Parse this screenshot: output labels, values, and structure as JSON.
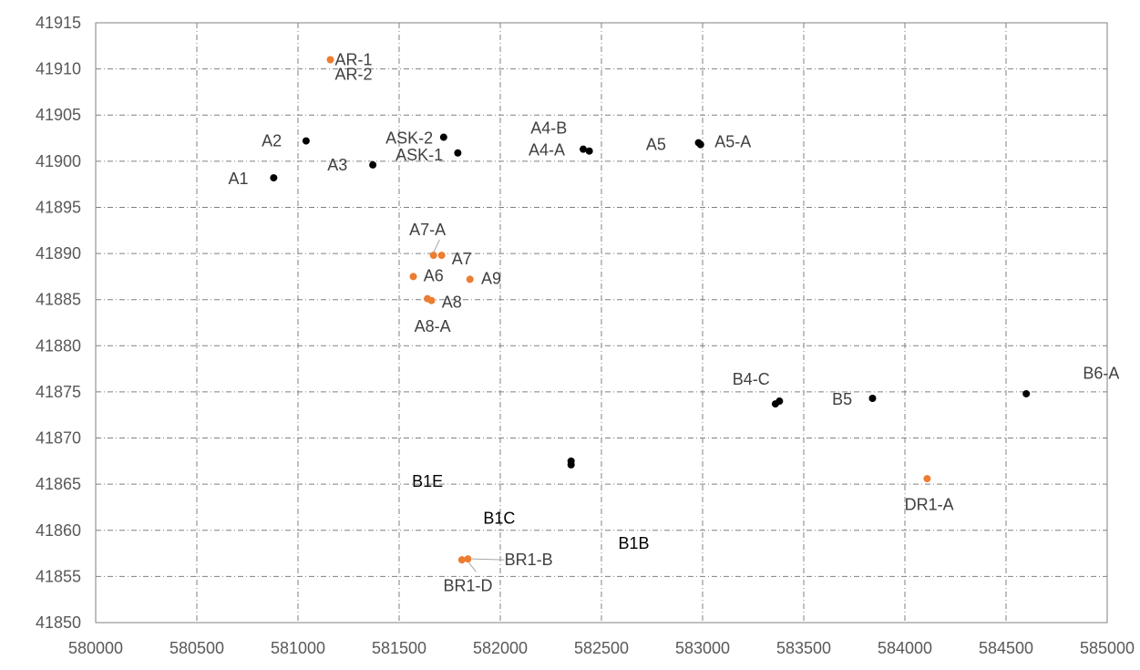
{
  "chart_data": {
    "type": "scatter",
    "title": "",
    "xlabel": "",
    "ylabel": "",
    "xlim": [
      580000,
      585000
    ],
    "ylim": [
      41850,
      41915
    ],
    "x_ticks": [
      "580000",
      "580500",
      "581000",
      "581500",
      "582000",
      "582500",
      "583000",
      "583500",
      "584000",
      "584500",
      "585000"
    ],
    "y_ticks": [
      "41915",
      "41910",
      "41905",
      "41900",
      "41895",
      "41890",
      "41885",
      "41880",
      "41875",
      "41870",
      "41865",
      "41860",
      "41855",
      "41850"
    ],
    "grid": true,
    "legend": "none",
    "colors": {
      "black": "#000000",
      "orange": "#ED7D31",
      "grid": "#808080",
      "leader": "#A6A6A6"
    },
    "series": [
      {
        "color": "#000000",
        "points": [
          {
            "x": 580880,
            "y": 41898.2
          },
          {
            "x": 581040,
            "y": 41902.2
          },
          {
            "x": 581370,
            "y": 41899.6
          },
          {
            "x": 581720,
            "y": 41902.6
          },
          {
            "x": 581790,
            "y": 41900.9
          },
          {
            "x": 582410,
            "y": 41901.3
          },
          {
            "x": 582440,
            "y": 41901.1
          },
          {
            "x": 582980,
            "y": 41902.0
          },
          {
            "x": 582990,
            "y": 41901.8
          },
          {
            "x": 582350,
            "y": 41867.5
          },
          {
            "x": 582350,
            "y": 41867.1
          },
          {
            "x": 583360,
            "y": 41873.7
          },
          {
            "x": 583380,
            "y": 41874.0
          },
          {
            "x": 583840,
            "y": 41874.3
          },
          {
            "x": 584600,
            "y": 41874.8
          }
        ]
      },
      {
        "color": "#ED7D31",
        "points": [
          {
            "x": 581160,
            "y": 41911.0
          },
          {
            "x": 581670,
            "y": 41889.8
          },
          {
            "x": 581710,
            "y": 41889.8
          },
          {
            "x": 581570,
            "y": 41887.5
          },
          {
            "x": 581850,
            "y": 41887.2
          },
          {
            "x": 581640,
            "y": 41885.1
          },
          {
            "x": 581660,
            "y": 41884.9
          },
          {
            "x": 581810,
            "y": 41856.8
          },
          {
            "x": 581840,
            "y": 41856.9
          },
          {
            "x": 584110,
            "y": 41865.6
          }
        ]
      }
    ],
    "annotations": [
      {
        "text": "AR-1",
        "x": 581275,
        "y": 41911.0,
        "dark": false
      },
      {
        "text": "AR-2",
        "x": 581275,
        "y": 41909.4,
        "dark": false
      },
      {
        "text": "A2",
        "x": 580870,
        "y": 41902.2,
        "dark": false
      },
      {
        "text": "ASK-2",
        "x": 581550,
        "y": 41902.5,
        "dark": false
      },
      {
        "text": "ASK-1",
        "x": 581600,
        "y": 41900.7,
        "dark": false
      },
      {
        "text": "A4-B",
        "x": 582240,
        "y": 41903.6,
        "dark": false
      },
      {
        "text": "A4-A",
        "x": 582230,
        "y": 41901.2,
        "dark": false
      },
      {
        "text": "A5",
        "x": 582770,
        "y": 41901.8,
        "dark": false
      },
      {
        "text": "A5-A",
        "x": 583150,
        "y": 41902.1,
        "dark": false
      },
      {
        "text": "A3",
        "x": 581195,
        "y": 41899.6,
        "dark": false
      },
      {
        "text": "A1",
        "x": 580705,
        "y": 41898.1,
        "dark": false
      },
      {
        "text": "A7-A",
        "x": 581640,
        "y": 41892.6,
        "dark": false
      },
      {
        "text": "A7",
        "x": 581810,
        "y": 41889.4,
        "dark": false
      },
      {
        "text": "A6",
        "x": 581670,
        "y": 41887.6,
        "dark": false
      },
      {
        "text": "A9",
        "x": 581955,
        "y": 41887.3,
        "dark": false
      },
      {
        "text": "A8",
        "x": 581760,
        "y": 41884.7,
        "dark": false
      },
      {
        "text": "A8-A",
        "x": 581665,
        "y": 41882.1,
        "dark": false
      },
      {
        "text": "B4-C",
        "x": 583240,
        "y": 41876.4,
        "dark": false
      },
      {
        "text": "B5",
        "x": 583690,
        "y": 41874.2,
        "dark": false
      },
      {
        "text": "B6-A",
        "x": 584970,
        "y": 41877.0,
        "dark": false
      },
      {
        "text": "B1E",
        "x": 581640,
        "y": 41865.3,
        "dark": true
      },
      {
        "text": "B1C",
        "x": 581995,
        "y": 41861.3,
        "dark": true
      },
      {
        "text": "B1B",
        "x": 582660,
        "y": 41858.6,
        "dark": true
      },
      {
        "text": "DR1-A",
        "x": 584120,
        "y": 41862.8,
        "dark": false
      },
      {
        "text": "BR1-B",
        "x": 582140,
        "y": 41856.8,
        "dark": false
      },
      {
        "text": "BR1-D",
        "x": 581840,
        "y": 41854.0,
        "dark": false
      }
    ],
    "leader_lines": [
      {
        "from": [
          581700,
          41891.5
        ],
        "to": [
          581670,
          41890.1
        ]
      },
      {
        "from": [
          582020,
          41856.8
        ],
        "to": [
          581860,
          41856.9
        ]
      },
      {
        "from": [
          581880,
          41855.5
        ],
        "to": [
          581845,
          41856.5
        ]
      }
    ]
  }
}
